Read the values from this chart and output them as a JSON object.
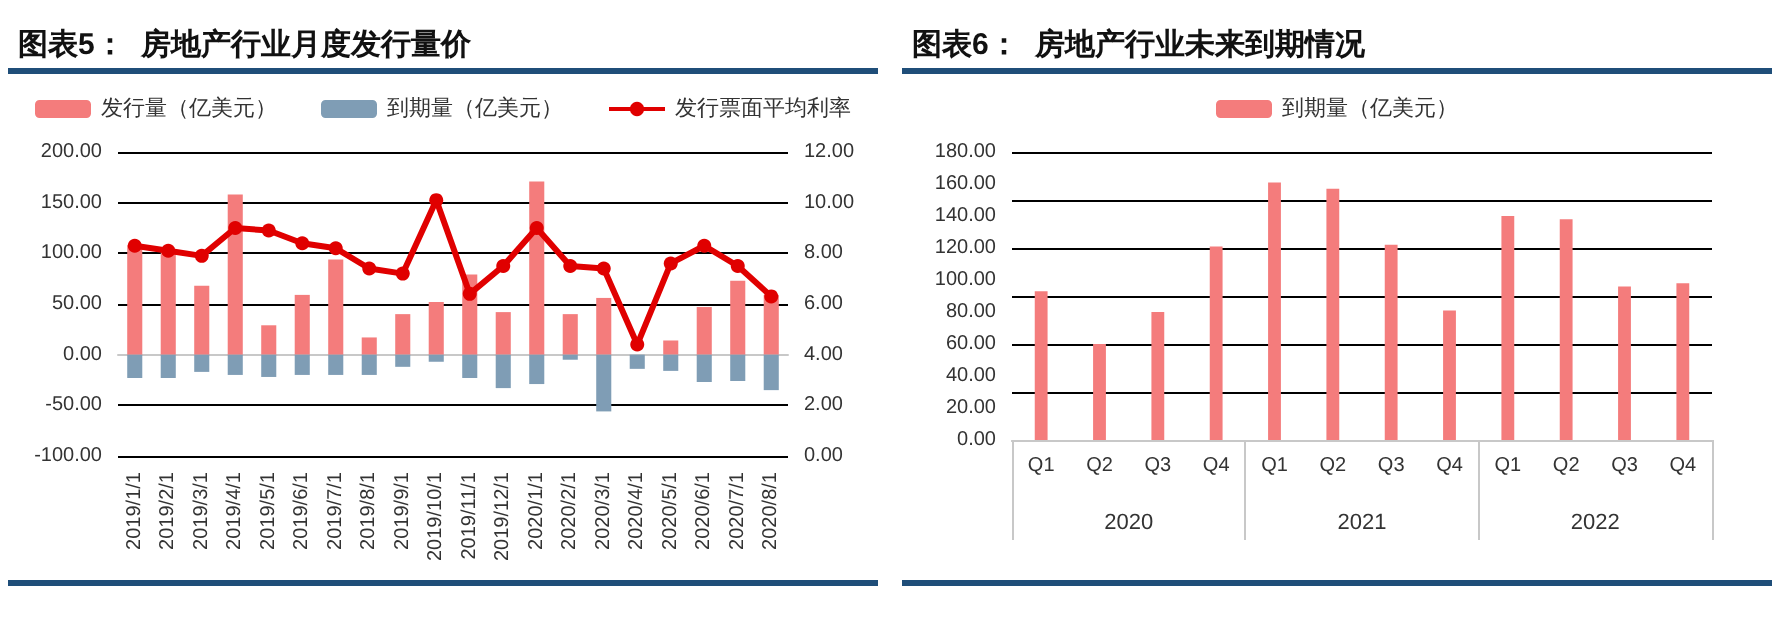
{
  "chart_data": [
    {
      "type": "bar",
      "title": "图表5：  房地产行业月度发行量价",
      "categories": [
        "2019/1/1",
        "2019/2/1",
        "2019/3/1",
        "2019/4/1",
        "2019/5/1",
        "2019/6/1",
        "2019/7/1",
        "2019/8/1",
        "2019/9/1",
        "2019/10/1",
        "2019/11/1",
        "2019/12/1",
        "2020/1/1",
        "2020/2/1",
        "2020/3/1",
        "2020/4/1",
        "2020/5/1",
        "2020/6/1",
        "2020/7/1",
        "2020/8/1"
      ],
      "series": [
        {
          "name": "发行量（亿美元）",
          "color": "#f47c7c",
          "values": [
            108,
            104,
            68,
            158,
            29,
            59,
            94,
            17,
            40,
            52,
            79,
            42,
            171,
            40,
            56,
            null,
            14,
            47,
            73,
            59
          ]
        },
        {
          "name": "到期量（亿美元）",
          "color": "#7f9db5",
          "values": [
            -23,
            -23,
            -17,
            -20,
            -22,
            -20,
            -20,
            -20,
            -12,
            -7,
            -23,
            -33,
            -29,
            -5,
            -56,
            -14,
            -16,
            -27,
            -26,
            -35
          ]
        },
        {
          "name": "发行票面平均利率",
          "type": "line",
          "axis": "y2",
          "color": "#e00000",
          "marker": "circle",
          "values": [
            8.3,
            8.1,
            7.9,
            9.0,
            8.9,
            8.4,
            8.2,
            7.4,
            7.2,
            10.1,
            6.4,
            7.5,
            9.0,
            7.5,
            7.4,
            4.4,
            7.6,
            8.3,
            7.5,
            6.3
          ]
        }
      ],
      "ylim": [
        -100,
        200
      ],
      "yticks": [
        {
          "value": -100,
          "label": "-100.00"
        },
        {
          "value": -50,
          "label": "-50.00"
        },
        {
          "value": 0,
          "label": "0.00"
        },
        {
          "value": 50,
          "label": "50.00"
        },
        {
          "value": 100,
          "label": "100.00"
        },
        {
          "value": 150,
          "label": "150.00"
        },
        {
          "value": 200,
          "label": "200.00"
        }
      ],
      "y2lim": [
        0,
        12
      ],
      "y2ticks": [
        {
          "value": 0,
          "label": "0.00"
        },
        {
          "value": 2,
          "label": "2.00"
        },
        {
          "value": 4,
          "label": "4.00"
        },
        {
          "value": 6,
          "label": "6.00"
        },
        {
          "value": 8,
          "label": "8.00"
        },
        {
          "value": 10,
          "label": "10.00"
        },
        {
          "value": 12,
          "label": "12.00"
        }
      ],
      "grid": "y",
      "legend": "top",
      "stacked": true
    },
    {
      "type": "bar",
      "title": "图表6：  房地产行业未来到期情况",
      "categories": [
        "Q1",
        "Q2",
        "Q3",
        "Q4",
        "Q1",
        "Q2",
        "Q3",
        "Q4",
        "Q1",
        "Q2",
        "Q3",
        "Q4"
      ],
      "series": [
        {
          "name": "到期量（亿美元）",
          "color": "#f47c7c",
          "values": [
            93,
            60,
            80,
            121,
            161,
            157,
            122,
            81,
            140,
            138,
            96,
            98
          ]
        }
      ],
      "annotations": [
        "2020",
        "2021",
        "2022"
      ],
      "ylim": [
        0,
        180
      ],
      "yticks": [
        {
          "value": 0,
          "label": "0.00"
        },
        {
          "value": 20,
          "label": "20.00"
        },
        {
          "value": 40,
          "label": "40.00"
        },
        {
          "value": 60,
          "label": "60.00"
        },
        {
          "value": 80,
          "label": "80.00"
        },
        {
          "value": 100,
          "label": "100.00"
        },
        {
          "value": 120,
          "label": "120.00"
        },
        {
          "value": 140,
          "label": "140.00"
        },
        {
          "value": 160,
          "label": "160.00"
        },
        {
          "value": 180,
          "label": "180.00"
        }
      ],
      "grid": "y",
      "legend": "top"
    }
  ]
}
